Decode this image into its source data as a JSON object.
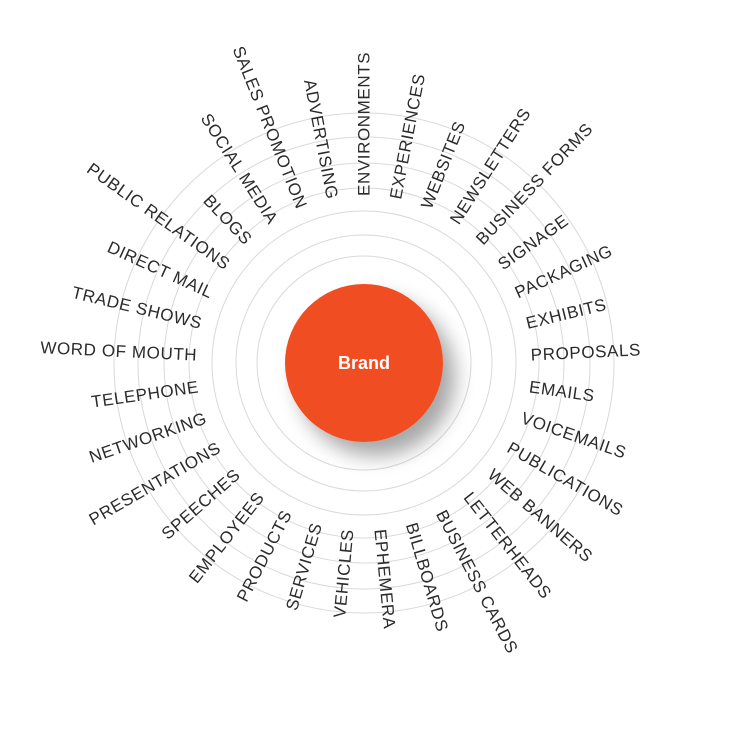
{
  "center": {
    "label": "Brand",
    "color": "#F04E23"
  },
  "ring_color": "#d9d9d9",
  "text_color": "#2b2b2b",
  "touchpoints": [
    "ENVIRONMENTS",
    "EXPERIENCES",
    "WEBSITES",
    "NEWSLETTERS",
    "BUSINESS FORMS",
    "SIGNAGE",
    "PACKAGING",
    "EXHIBITS",
    "PROPOSALS",
    "EMAILS",
    "VOICEMAILS",
    "PUBLICATIONS",
    "WEB BANNERS",
    "LETTERHEADS",
    "BUSINESS CARDS",
    "BILLBOARDS",
    "EPHEMERA",
    "VEHICLES",
    "SERVICES",
    "PRODUCTS",
    "EMPLOYEES",
    "SPEECHES",
    "PRESENTATIONS",
    "NETWORKING",
    "TELEPHONE",
    "WORD OF MOUTH",
    "TRADE SHOWS",
    "DIRECT MAIL",
    "PUBLIC RELATIONS",
    "BLOGS",
    "SOCIAL MEDIA",
    "SALES PROMOTION",
    "ADVERTISING"
  ]
}
